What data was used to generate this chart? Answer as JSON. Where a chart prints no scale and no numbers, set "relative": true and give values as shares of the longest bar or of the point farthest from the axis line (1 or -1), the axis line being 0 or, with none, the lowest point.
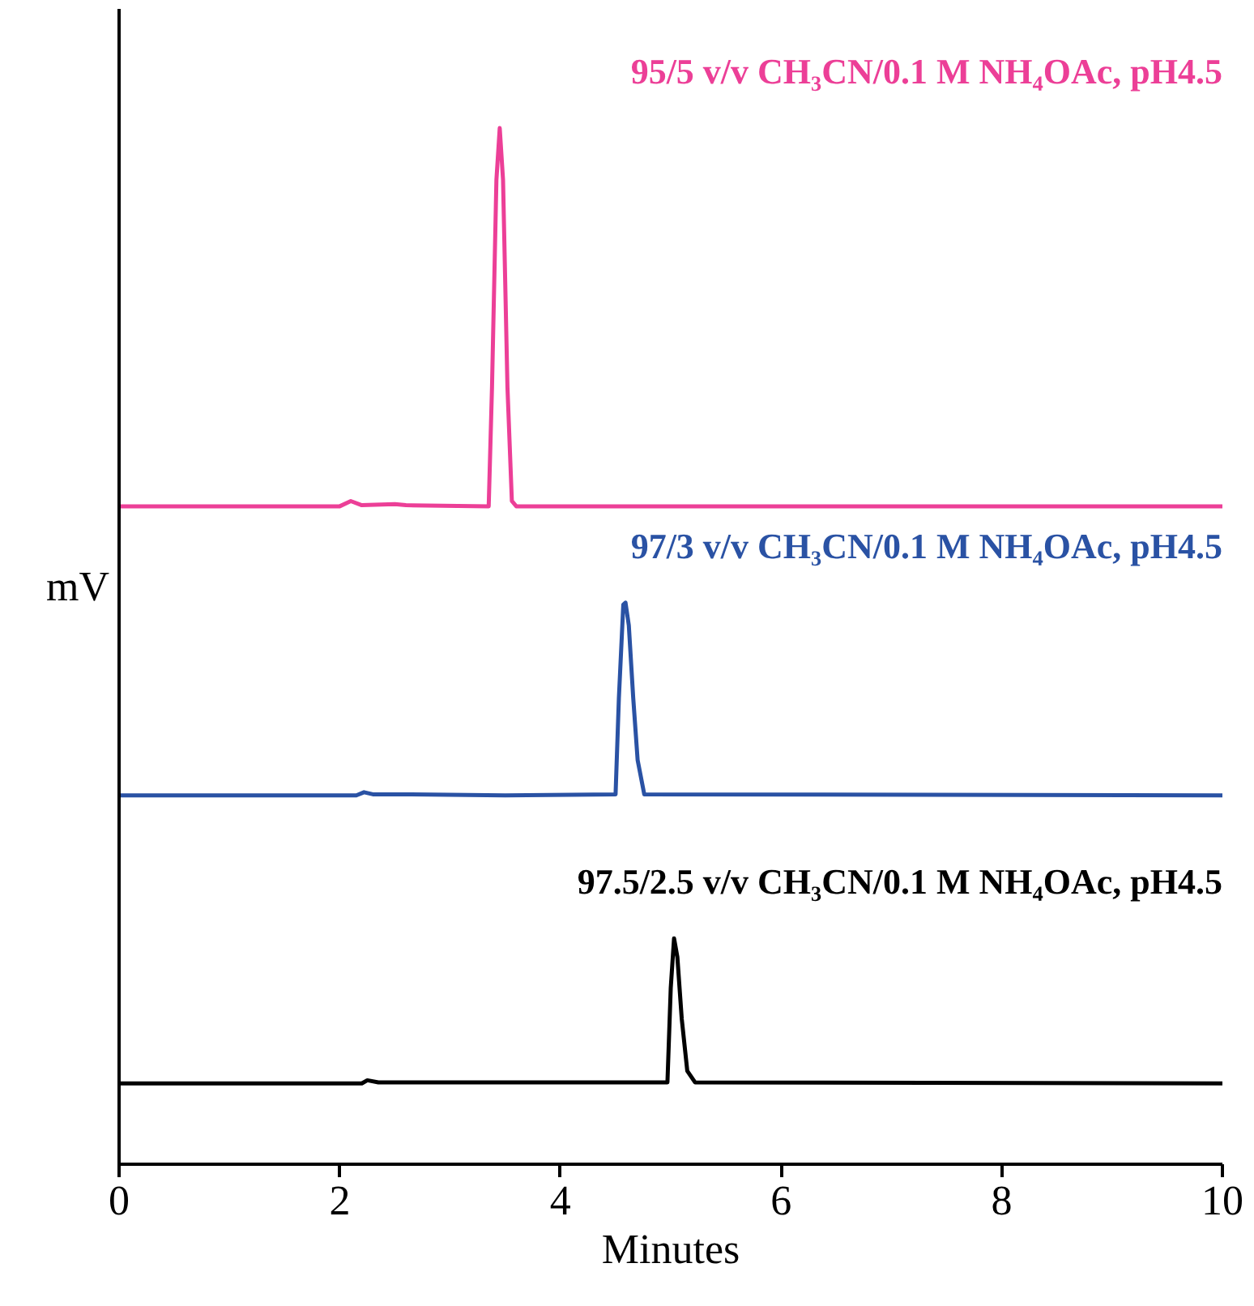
{
  "chart_data": {
    "type": "line",
    "relative": true,
    "xlabel": "Minutes",
    "ylabel": "mV",
    "xlim": [
      0,
      10
    ],
    "xticks": [
      0,
      2,
      4,
      6,
      8,
      10
    ],
    "tick_labels": "x",
    "line_style": "solid",
    "series": [
      {
        "name": "95/5 v/v CH₃CN/0.1 M NH₄OAc, pH4.5",
        "color": "#ec3f97",
        "x": [
          0,
          2.0,
          2.1,
          2.2,
          2.5,
          2.6,
          3.35,
          3.38,
          3.42,
          3.45,
          3.48,
          3.52,
          3.56,
          3.6,
          10
        ],
        "values": [
          0.635,
          0.635,
          0.64,
          0.636,
          0.637,
          0.636,
          0.635,
          0.75,
          0.95,
          1.0,
          0.95,
          0.75,
          0.64,
          0.635,
          0.635
        ]
      },
      {
        "name": "97/3 v/v CH₃CN/0.1 M NH₄OAc, pH4.5",
        "color": "#2a52a4",
        "x": [
          0,
          2.15,
          2.22,
          2.3,
          2.6,
          3.5,
          4.5,
          4.53,
          4.57,
          4.59,
          4.62,
          4.66,
          4.7,
          4.76,
          10
        ],
        "values": [
          0.356,
          0.356,
          0.359,
          0.357,
          0.357,
          0.356,
          0.357,
          0.45,
          0.54,
          0.542,
          0.52,
          0.45,
          0.39,
          0.357,
          0.356
        ]
      },
      {
        "name": "97.5/2.5 v/v CH₃CN/0.1 M NH₄OAc, pH4.5",
        "color": "#000000",
        "x": [
          0,
          2.2,
          2.25,
          2.35,
          4.97,
          5.0,
          5.03,
          5.06,
          5.1,
          5.15,
          5.22,
          10
        ],
        "values": [
          0.078,
          0.078,
          0.081,
          0.079,
          0.079,
          0.17,
          0.218,
          0.2,
          0.14,
          0.09,
          0.079,
          0.078
        ]
      }
    ]
  }
}
